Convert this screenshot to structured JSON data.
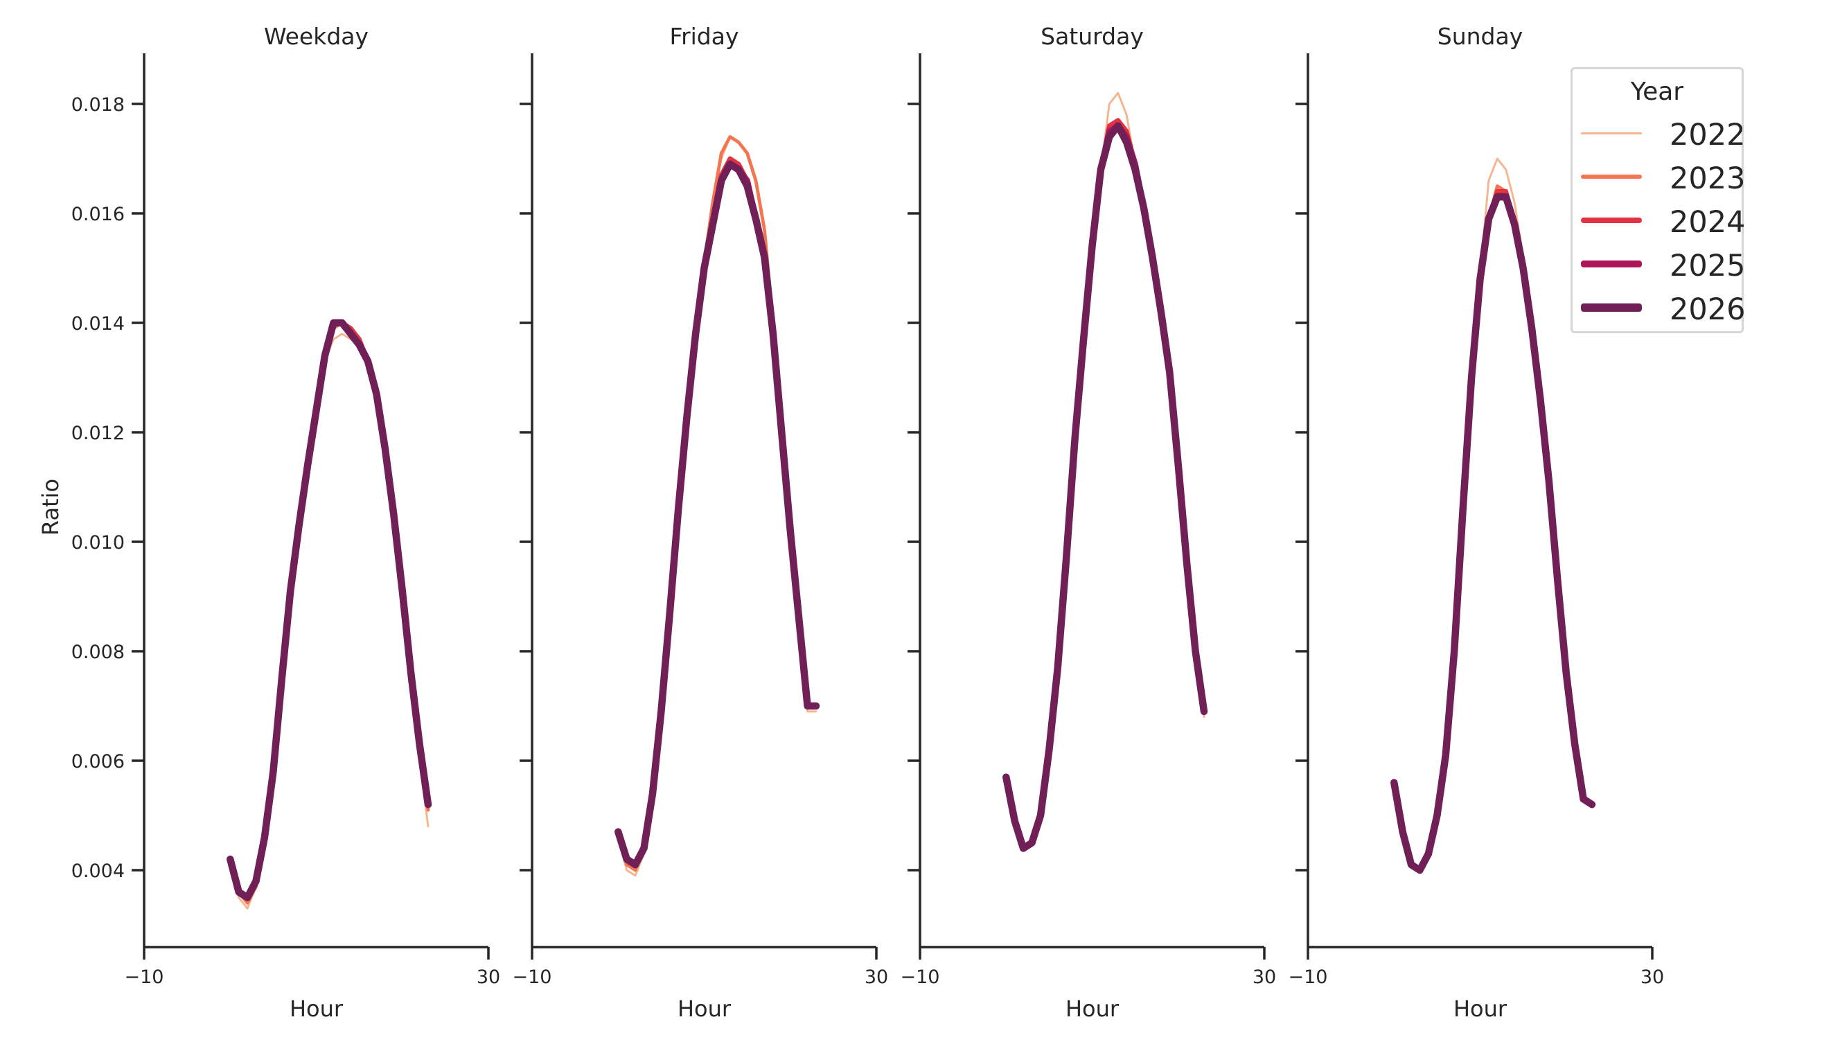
{
  "chart_data": {
    "type": "line",
    "layout": "facet-columns",
    "ylabel": "Ratio",
    "xlabel": "Hour",
    "xlim": [
      -10,
      30
    ],
    "ylim": [
      0.0026,
      0.0189
    ],
    "xticks": [
      -10,
      30
    ],
    "yticks": [
      0.004,
      0.006,
      0.008,
      0.01,
      0.012,
      0.014,
      0.016,
      0.018
    ],
    "ytick_labels": [
      "0.004",
      "0.006",
      "0.008",
      "0.010",
      "0.012",
      "0.014",
      "0.016",
      "0.018"
    ],
    "xtick_labels": [
      "−10",
      "30"
    ],
    "grid": false,
    "legend": {
      "title": "Year",
      "position": "upper right",
      "entries": [
        {
          "label": "2022",
          "color": "#f6b48f",
          "width": 2
        },
        {
          "label": "2023",
          "color": "#f37651",
          "width": 4
        },
        {
          "label": "2024",
          "color": "#e13342",
          "width": 6
        },
        {
          "label": "2025",
          "color": "#ad1759",
          "width": 8
        },
        {
          "label": "2026",
          "color": "#701f57",
          "width": 10
        }
      ]
    },
    "x": [
      0,
      1,
      2,
      3,
      4,
      5,
      6,
      7,
      8,
      9,
      10,
      11,
      12,
      13,
      14,
      15,
      16,
      17,
      18,
      19,
      20,
      21,
      22,
      23
    ],
    "panels": [
      {
        "title": "Weekday",
        "series": [
          {
            "name": "2022",
            "values": [
              0.0041,
              0.0035,
              0.0033,
              0.0037,
              0.0045,
              0.0058,
              0.0074,
              0.009,
              0.0102,
              0.0113,
              0.0123,
              0.0133,
              0.0137,
              0.0138,
              0.0137,
              0.0136,
              0.0132,
              0.0126,
              0.0116,
              0.0104,
              0.0089,
              0.0073,
              0.006,
              0.0048
            ]
          },
          {
            "name": "2023",
            "values": [
              0.0042,
              0.0036,
              0.0034,
              0.0037,
              0.0045,
              0.0058,
              0.0075,
              0.0091,
              0.0103,
              0.0114,
              0.0124,
              0.0134,
              0.0139,
              0.014,
              0.0139,
              0.0137,
              0.0133,
              0.0127,
              0.0117,
              0.0105,
              0.0091,
              0.0075,
              0.0062,
              0.0051
            ]
          },
          {
            "name": "2024",
            "values": [
              0.0042,
              0.0036,
              0.0035,
              0.0038,
              0.0046,
              0.0058,
              0.0075,
              0.0091,
              0.0103,
              0.0114,
              0.0124,
              0.0134,
              0.014,
              0.014,
              0.0139,
              0.0137,
              0.0133,
              0.0127,
              0.0117,
              0.0105,
              0.0091,
              0.0076,
              0.0063,
              0.0052
            ]
          },
          {
            "name": "2025",
            "values": [
              0.0042,
              0.0036,
              0.0035,
              0.0038,
              0.0046,
              0.0058,
              0.0075,
              0.0091,
              0.0103,
              0.0114,
              0.0124,
              0.0134,
              0.014,
              0.014,
              0.0138,
              0.0136,
              0.0133,
              0.0127,
              0.0117,
              0.0105,
              0.0091,
              0.0076,
              0.0063,
              0.0052
            ]
          },
          {
            "name": "2026",
            "values": [
              0.0042,
              0.0036,
              0.0035,
              0.0038,
              0.0046,
              0.0058,
              0.0075,
              0.0091,
              0.0103,
              0.0114,
              0.0124,
              0.0134,
              0.014,
              0.014,
              0.0138,
              0.0136,
              0.0133,
              0.0127,
              0.0117,
              0.0105,
              0.0091,
              0.0076,
              0.0063,
              0.0052
            ]
          }
        ]
      },
      {
        "title": "Friday",
        "series": [
          {
            "name": "2022",
            "values": [
              0.0046,
              0.004,
              0.0039,
              0.0043,
              0.0053,
              0.0069,
              0.0086,
              0.0106,
              0.0123,
              0.0138,
              0.0151,
              0.0162,
              0.017,
              0.0174,
              0.0173,
              0.0171,
              0.0166,
              0.0157,
              0.014,
              0.0121,
              0.0102,
              0.0086,
              0.0069,
              0.0069
            ]
          },
          {
            "name": "2023",
            "values": [
              0.0047,
              0.0041,
              0.004,
              0.0044,
              0.0053,
              0.0069,
              0.0087,
              0.0106,
              0.0123,
              0.0138,
              0.0151,
              0.0162,
              0.0171,
              0.0174,
              0.0173,
              0.0171,
              0.0166,
              0.0157,
              0.014,
              0.0121,
              0.0102,
              0.0086,
              0.007,
              0.007
            ]
          },
          {
            "name": "2024",
            "values": [
              0.0047,
              0.0042,
              0.0041,
              0.0044,
              0.0054,
              0.0069,
              0.0087,
              0.0106,
              0.0123,
              0.0138,
              0.015,
              0.0159,
              0.0167,
              0.017,
              0.0169,
              0.0166,
              0.0159,
              0.0152,
              0.0138,
              0.012,
              0.0102,
              0.0086,
              0.007,
              0.007
            ]
          },
          {
            "name": "2025",
            "values": [
              0.0047,
              0.0042,
              0.0041,
              0.0044,
              0.0054,
              0.0069,
              0.0087,
              0.0106,
              0.0123,
              0.0138,
              0.015,
              0.0158,
              0.0166,
              0.0169,
              0.0168,
              0.0166,
              0.0159,
              0.0152,
              0.0138,
              0.012,
              0.0102,
              0.0086,
              0.007,
              0.007
            ]
          },
          {
            "name": "2026",
            "values": [
              0.0047,
              0.0042,
              0.0041,
              0.0044,
              0.0054,
              0.0069,
              0.0087,
              0.0106,
              0.0123,
              0.0138,
              0.015,
              0.0158,
              0.0166,
              0.0169,
              0.0168,
              0.0165,
              0.0159,
              0.0152,
              0.0138,
              0.012,
              0.0102,
              0.0086,
              0.007,
              0.007
            ]
          }
        ]
      },
      {
        "title": "Saturday",
        "series": [
          {
            "name": "2022",
            "values": [
              0.0057,
              0.0049,
              0.0044,
              0.0045,
              0.005,
              0.0062,
              0.0077,
              0.0097,
              0.0119,
              0.0137,
              0.0154,
              0.0168,
              0.018,
              0.0182,
              0.0178,
              0.0169,
              0.0161,
              0.0152,
              0.0142,
              0.0131,
              0.0114,
              0.0096,
              0.008,
              0.0068
            ]
          },
          {
            "name": "2023",
            "values": [
              0.0057,
              0.0049,
              0.0044,
              0.0045,
              0.005,
              0.0062,
              0.0077,
              0.0097,
              0.0119,
              0.0137,
              0.0154,
              0.0168,
              0.0176,
              0.0177,
              0.0175,
              0.0169,
              0.0161,
              0.0152,
              0.0142,
              0.0131,
              0.0114,
              0.0096,
              0.008,
              0.0069
            ]
          },
          {
            "name": "2024",
            "values": [
              0.0057,
              0.0049,
              0.0044,
              0.0045,
              0.005,
              0.0062,
              0.0077,
              0.0097,
              0.0119,
              0.0137,
              0.0154,
              0.0168,
              0.0176,
              0.0177,
              0.0175,
              0.0169,
              0.0161,
              0.0152,
              0.0142,
              0.0131,
              0.0114,
              0.0096,
              0.008,
              0.0069
            ]
          },
          {
            "name": "2025",
            "values": [
              0.0057,
              0.0049,
              0.0044,
              0.0045,
              0.005,
              0.0062,
              0.0077,
              0.0097,
              0.0119,
              0.0137,
              0.0154,
              0.0168,
              0.0175,
              0.0176,
              0.0174,
              0.0169,
              0.0161,
              0.0152,
              0.0142,
              0.0131,
              0.0114,
              0.0096,
              0.008,
              0.0069
            ]
          },
          {
            "name": "2026",
            "values": [
              0.0057,
              0.0049,
              0.0044,
              0.0045,
              0.005,
              0.0062,
              0.0077,
              0.0097,
              0.0119,
              0.0137,
              0.0154,
              0.0168,
              0.0174,
              0.0176,
              0.0173,
              0.0168,
              0.0161,
              0.0152,
              0.0142,
              0.0131,
              0.0114,
              0.0096,
              0.008,
              0.0069
            ]
          }
        ]
      },
      {
        "title": "Sunday",
        "series": [
          {
            "name": "2022",
            "values": [
              0.0056,
              0.0047,
              0.0041,
              0.004,
              0.0043,
              0.005,
              0.0061,
              0.008,
              0.0106,
              0.013,
              0.0149,
              0.0166,
              0.017,
              0.0168,
              0.0162,
              0.0152,
              0.014,
              0.0127,
              0.0111,
              0.0093,
              0.0076,
              0.0063,
              0.0053,
              0.0052
            ]
          },
          {
            "name": "2023",
            "values": [
              0.0056,
              0.0047,
              0.0041,
              0.004,
              0.0043,
              0.005,
              0.0061,
              0.008,
              0.0106,
              0.013,
              0.0148,
              0.0159,
              0.0165,
              0.0164,
              0.0159,
              0.0151,
              0.014,
              0.0127,
              0.0111,
              0.0093,
              0.0076,
              0.0063,
              0.0053,
              0.0052
            ]
          },
          {
            "name": "2024",
            "values": [
              0.0056,
              0.0047,
              0.0041,
              0.004,
              0.0043,
              0.005,
              0.0061,
              0.008,
              0.0106,
              0.013,
              0.0148,
              0.0159,
              0.0164,
              0.0164,
              0.0158,
              0.015,
              0.0139,
              0.0126,
              0.0111,
              0.0093,
              0.0076,
              0.0063,
              0.0053,
              0.0052
            ]
          },
          {
            "name": "2025",
            "values": [
              0.0056,
              0.0047,
              0.0041,
              0.004,
              0.0043,
              0.005,
              0.0061,
              0.008,
              0.0106,
              0.013,
              0.0148,
              0.0159,
              0.0163,
              0.0163,
              0.0158,
              0.015,
              0.0139,
              0.0126,
              0.0111,
              0.0093,
              0.0076,
              0.0063,
              0.0053,
              0.0052
            ]
          },
          {
            "name": "2026",
            "values": [
              0.0056,
              0.0047,
              0.0041,
              0.004,
              0.0043,
              0.005,
              0.0061,
              0.008,
              0.0106,
              0.013,
              0.0148,
              0.0159,
              0.0163,
              0.0163,
              0.0158,
              0.015,
              0.0139,
              0.0126,
              0.0111,
              0.0093,
              0.0076,
              0.0063,
              0.0053,
              0.0052
            ]
          }
        ]
      }
    ]
  },
  "legend": {
    "title": "Year",
    "items": [
      {
        "label": "2022",
        "color": "#f6b48f",
        "thickness": 3
      },
      {
        "label": "2023",
        "color": "#f37651",
        "thickness": 6
      },
      {
        "label": "2024",
        "color": "#e13342",
        "thickness": 8
      },
      {
        "label": "2025",
        "color": "#ad1759",
        "thickness": 10
      },
      {
        "label": "2026",
        "color": "#701f57",
        "thickness": 12
      }
    ]
  },
  "axes": {
    "ylabel": "Ratio",
    "xlabel": "Hour",
    "axis_color": "#262626"
  }
}
